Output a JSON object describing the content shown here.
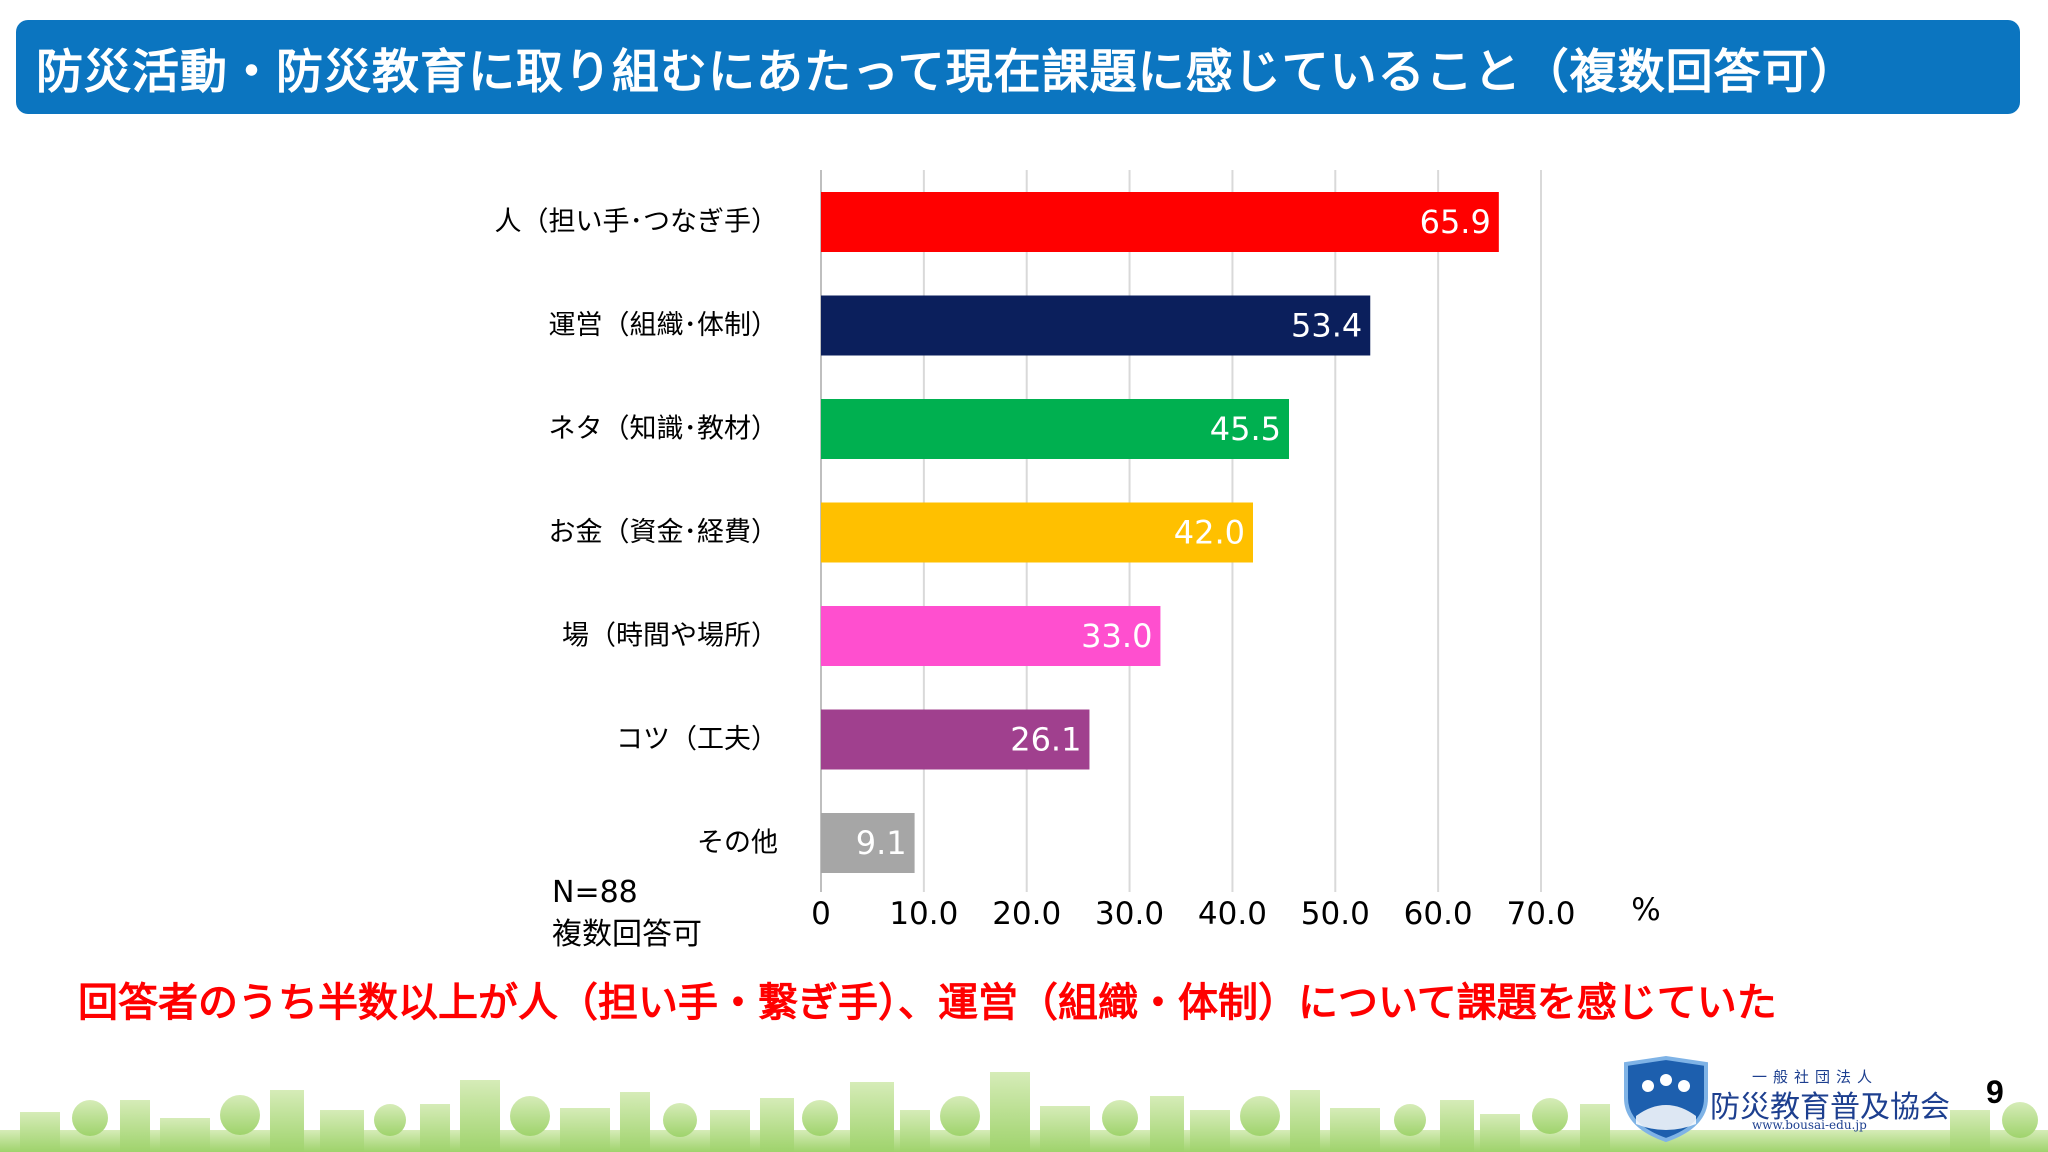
{
  "title": "防災活動・防災教育に取り組むにあたって現在課題に感じていること（複数回答可）",
  "chart_data": {
    "type": "bar",
    "orientation": "horizontal",
    "categories": [
      "人（担い手･つなぎ手）",
      "運営（組織･体制）",
      "ネタ（知識･教材）",
      "お金（資金･経費）",
      "場（時間や場所）",
      "コツ（工夫）",
      "その他"
    ],
    "values": [
      65.9,
      53.4,
      45.5,
      42.0,
      33.0,
      26.1,
      9.1
    ],
    "value_labels": [
      "65.9",
      "53.4",
      "45.5",
      "42.0",
      "33.0",
      "26.1",
      "9.1"
    ],
    "colors": [
      "#ff0000",
      "#0b1f5c",
      "#00b050",
      "#ffc000",
      "#ff4fcf",
      "#a0408e",
      "#a6a6a6"
    ],
    "xlim": [
      0,
      70
    ],
    "xticks": [
      "0",
      "10.0",
      "20.0",
      "30.0",
      "40.0",
      "50.0",
      "60.0",
      "70.0"
    ],
    "xunit": "%",
    "grid": true
  },
  "notes": {
    "n": "N=88",
    "multi": "複数回答可"
  },
  "conclusion": "回答者のうち半数以上が人（担い手・繋ぎ手）、運営（組織・体制）について課題を感じていた",
  "logo": {
    "small": "一般社団法人",
    "main": "防災教育普及協会",
    "url": "www.bousai-edu.jp"
  },
  "page_number": "9"
}
